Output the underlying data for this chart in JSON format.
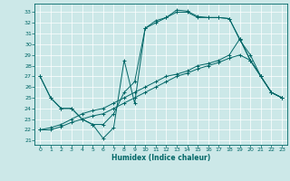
{
  "xlabel": "Humidex (Indice chaleur)",
  "xlim": [
    -0.5,
    23.5
  ],
  "ylim": [
    20.6,
    33.8
  ],
  "xticks": [
    0,
    1,
    2,
    3,
    4,
    5,
    6,
    7,
    8,
    9,
    10,
    11,
    12,
    13,
    14,
    15,
    16,
    17,
    18,
    19,
    20,
    21,
    22,
    23
  ],
  "yticks": [
    21,
    22,
    23,
    24,
    25,
    26,
    27,
    28,
    29,
    30,
    31,
    32,
    33
  ],
  "bg_color": "#cce8e8",
  "line_color": "#006666",
  "lines": [
    {
      "x": [
        0,
        1,
        2,
        3,
        4,
        5,
        6,
        7,
        8,
        9,
        10,
        11,
        12,
        13,
        14,
        15,
        16,
        17,
        18,
        19,
        20,
        21,
        22,
        23
      ],
      "y": [
        27,
        25,
        24,
        24,
        23,
        22.5,
        21.2,
        22.2,
        28.5,
        24.5,
        31.5,
        32.2,
        32.5,
        33.2,
        33.1,
        32.6,
        32.5,
        32.5,
        32.4,
        30.4,
        29.0,
        27.0,
        25.5,
        25.0
      ]
    },
    {
      "x": [
        0,
        1,
        2,
        3,
        4,
        5,
        6,
        7,
        8,
        9,
        10,
        11,
        12,
        13,
        14,
        15,
        16,
        17,
        18,
        19,
        20,
        21,
        22,
        23
      ],
      "y": [
        27,
        25,
        24,
        24,
        23,
        22.5,
        22.5,
        23.5,
        25.5,
        26.5,
        31.5,
        32.0,
        32.5,
        33.0,
        33.0,
        32.5,
        32.5,
        32.5,
        32.4,
        30.5,
        28.5,
        27.0,
        25.5,
        25.0
      ]
    },
    {
      "x": [
        0,
        1,
        2,
        3,
        4,
        5,
        6,
        7,
        8,
        9,
        10,
        11,
        12,
        13,
        14,
        15,
        16,
        17,
        18,
        19,
        20,
        21,
        22,
        23
      ],
      "y": [
        22,
        22.2,
        22.5,
        23.0,
        23.5,
        23.8,
        24.0,
        24.5,
        25.0,
        25.5,
        26.0,
        26.5,
        27.0,
        27.2,
        27.5,
        28.0,
        28.2,
        28.5,
        29.0,
        30.5,
        28.5,
        27.0,
        25.5,
        25.0
      ]
    },
    {
      "x": [
        0,
        1,
        2,
        3,
        4,
        5,
        6,
        7,
        8,
        9,
        10,
        11,
        12,
        13,
        14,
        15,
        16,
        17,
        18,
        19,
        20,
        21,
        22,
        23
      ],
      "y": [
        22,
        22.0,
        22.3,
        22.7,
        23.0,
        23.3,
        23.5,
        24.0,
        24.5,
        25.0,
        25.5,
        26.0,
        26.5,
        27.0,
        27.3,
        27.7,
        28.0,
        28.3,
        28.7,
        29.0,
        28.5,
        27.0,
        25.5,
        25.0
      ]
    }
  ]
}
